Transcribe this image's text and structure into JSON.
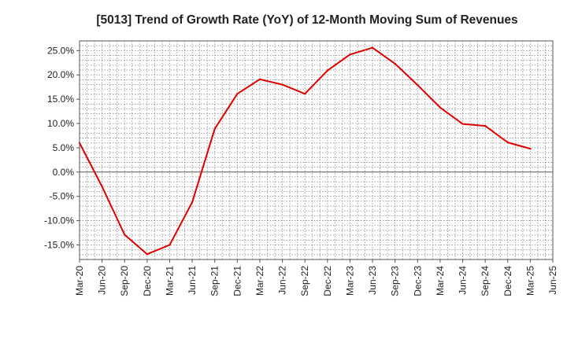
{
  "chart_data": {
    "type": "line",
    "title": "[5013]  Trend of Growth Rate (YoY) of 12-Month Moving Sum of Revenues",
    "xlabel": "",
    "ylabel": "",
    "ylim": [
      -18,
      27
    ],
    "y_ticks": [
      -15,
      -10,
      -5,
      0,
      5,
      10,
      15,
      20,
      25
    ],
    "y_tick_labels": [
      "-15.0%",
      "-10.0%",
      "-5.0%",
      "0.0%",
      "5.0%",
      "10.0%",
      "15.0%",
      "20.0%",
      "25.0%"
    ],
    "x_ticks": [
      "Mar-20",
      "Jun-20",
      "Sep-20",
      "Dec-20",
      "Mar-21",
      "Jun-21",
      "Sep-21",
      "Dec-21",
      "Mar-22",
      "Jun-22",
      "Sep-22",
      "Dec-22",
      "Mar-23",
      "Jun-23",
      "Sep-23",
      "Dec-23",
      "Mar-24",
      "Jun-24",
      "Sep-24",
      "Dec-24",
      "Mar-25",
      "Jun-25"
    ],
    "grid": true,
    "zero_line": true,
    "series": [
      {
        "color": "#e00000",
        "x": [
          "Mar-20",
          "Jun-20",
          "Sep-20",
          "Dec-20",
          "Mar-21",
          "Jun-21",
          "Sep-21",
          "Dec-21",
          "Mar-22",
          "Jun-22",
          "Sep-22",
          "Dec-22",
          "Mar-23",
          "Jun-23",
          "Sep-23",
          "Dec-23",
          "Mar-24",
          "Jun-24",
          "Sep-24",
          "Dec-24",
          "Mar-25"
        ],
        "values": [
          6.0,
          -3.0,
          -12.9,
          -16.9,
          -15.0,
          -6.2,
          8.9,
          16.1,
          19.1,
          18.0,
          16.1,
          20.9,
          24.2,
          25.6,
          22.3,
          17.9,
          13.3,
          9.9,
          9.5,
          6.1,
          4.8
        ]
      }
    ]
  }
}
